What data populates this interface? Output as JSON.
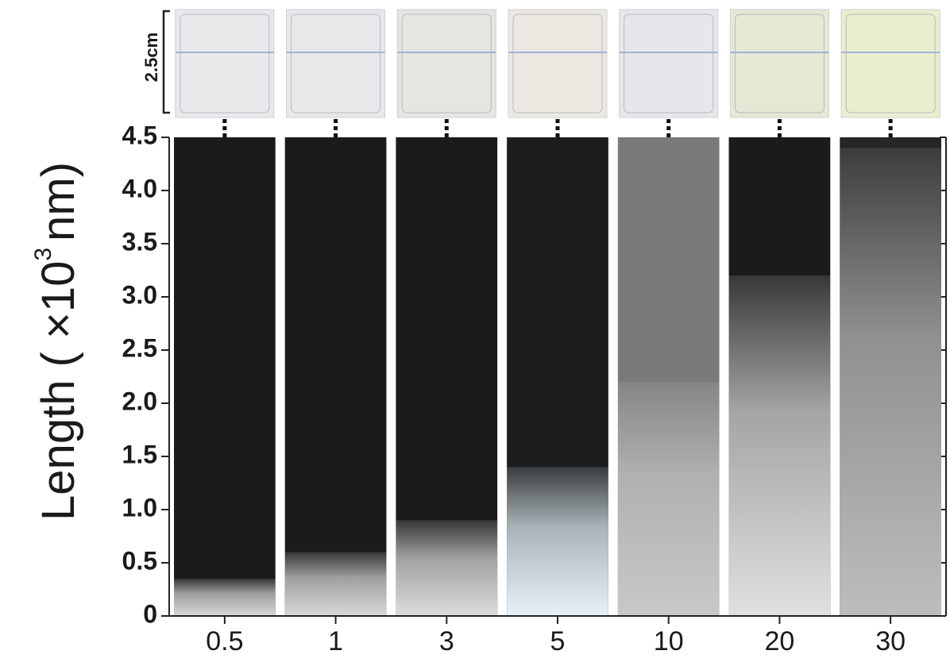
{
  "chart_data": {
    "type": "bar",
    "y_label": "Length ( ×10",
    "y_label_sup": "3",
    "y_label_unit": "nm)",
    "scale_label": "2.5cm",
    "categories": [
      "0.5",
      "1",
      "3",
      "5",
      "10",
      "20",
      "30"
    ],
    "values": [
      0.35,
      0.6,
      0.9,
      1.4,
      2.2,
      3.2,
      4.4
    ],
    "panel_backgrounds": [
      "#1c1a1b",
      "#1c1a1b",
      "#1c1a1b",
      "#1b1d1f",
      "#7a7a7a",
      "#1c1a1b",
      "#262626"
    ],
    "colors": [
      "#d8d8d8",
      "#d8d8d8",
      "#dcdcdc",
      "#e6f2f8",
      "#c8c8c8",
      "#e0e0e0",
      "#bdbdbd"
    ],
    "photo_colors": [
      "#e9e9ec",
      "#e8e8ea",
      "#e6e5e2",
      "#ebe8e2",
      "#e6e7ea",
      "#e4e9d6",
      "#eaedcf"
    ],
    "ylim": [
      0,
      4.5
    ],
    "yticks": [
      0,
      0.5,
      {
        "value": 1,
        "label": "1.0"
      },
      1.5,
      {
        "value": 2,
        "label": "2.0"
      },
      2.5,
      {
        "value": 3,
        "label": "3.0"
      },
      3.5,
      {
        "value": 4,
        "label": "4.0"
      },
      4.5
    ]
  }
}
